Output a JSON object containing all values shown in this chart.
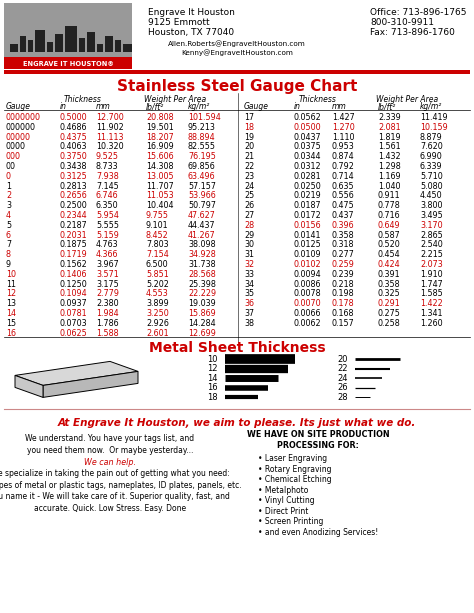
{
  "header": {
    "company": "Engrave It Houston",
    "address1": "9125 Emmott",
    "address2": "Houston, TX 77040",
    "email1": "Allen.Roberts@EngraveItHouston.com",
    "email2": "Kenny@EngraveItHouston.com",
    "office": "Office: 713-896-1765",
    "phone2": "800-310-9911",
    "fax": "Fax: 713-896-1760"
  },
  "chart_title": "Stainless Steel Gauge Chart",
  "left_data": [
    [
      "0000000",
      "0.5000",
      "12.700",
      "20.808",
      "101.594",
      true
    ],
    [
      "000000",
      "0.4686",
      "11.902",
      "19.501",
      "95.213",
      false
    ],
    [
      "00000",
      "0.4375",
      "11.113",
      "18.207",
      "88.894",
      true
    ],
    [
      "0000",
      "0.4063",
      "10.320",
      "16.909",
      "82.555",
      false
    ],
    [
      "000",
      "0.3750",
      "9.525",
      "15.606",
      "76.195",
      true
    ],
    [
      "00",
      "0.3438",
      "8.733",
      "14.308",
      "69.856",
      false
    ],
    [
      "0",
      "0.3125",
      "7.938",
      "13.005",
      "63.496",
      true
    ],
    [
      "1",
      "0.2813",
      "7.145",
      "11.707",
      "57.157",
      false
    ],
    [
      "2",
      "0.2656",
      "6.746",
      "11.053",
      "53.966",
      true
    ],
    [
      "3",
      "0.2500",
      "6.350",
      "10.404",
      "50.797",
      false
    ],
    [
      "4",
      "0.2344",
      "5.954",
      "9.755",
      "47.627",
      true
    ],
    [
      "5",
      "0.2187",
      "5.555",
      "9.101",
      "44.437",
      false
    ],
    [
      "6",
      "0.2031",
      "5.159",
      "8.452",
      "41.267",
      true
    ],
    [
      "7",
      "0.1875",
      "4.763",
      "7.803",
      "38.098",
      false
    ],
    [
      "8",
      "0.1719",
      "4.366",
      "7.154",
      "34.928",
      true
    ],
    [
      "9",
      "0.1562",
      "3.967",
      "6.500",
      "31.738",
      false
    ],
    [
      "10",
      "0.1406",
      "3.571",
      "5.851",
      "28.568",
      true
    ],
    [
      "11",
      "0.1250",
      "3.175",
      "5.202",
      "25.398",
      false
    ],
    [
      "12",
      "0.1094",
      "2.779",
      "4.553",
      "22.229",
      true
    ],
    [
      "13",
      "0.0937",
      "2.380",
      "3.899",
      "19.039",
      false
    ],
    [
      "14",
      "0.0781",
      "1.984",
      "3.250",
      "15.869",
      true
    ],
    [
      "15",
      "0.0703",
      "1.786",
      "2.926",
      "14.284",
      false
    ],
    [
      "16",
      "0.0625",
      "1.588",
      "2.601",
      "12.699",
      true
    ]
  ],
  "right_data": [
    [
      "17",
      "0.0562",
      "1.427",
      "2.339",
      "11.419",
      false
    ],
    [
      "18",
      "0.0500",
      "1.270",
      "2.081",
      "10.159",
      true
    ],
    [
      "19",
      "0.0437",
      "1.110",
      "1.819",
      "8.879",
      false
    ],
    [
      "20",
      "0.0375",
      "0.953",
      "1.561",
      "7.620",
      false
    ],
    [
      "21",
      "0.0344",
      "0.874",
      "1.432",
      "6.990",
      false
    ],
    [
      "22",
      "0.0312",
      "0.792",
      "1.298",
      "6.339",
      false
    ],
    [
      "23",
      "0.0281",
      "0.714",
      "1.169",
      "5.710",
      false
    ],
    [
      "24",
      "0.0250",
      "0.635",
      "1.040",
      "5.080",
      false
    ],
    [
      "25",
      "0.0219",
      "0.556",
      "0.911",
      "4.450",
      false
    ],
    [
      "26",
      "0.0187",
      "0.475",
      "0.778",
      "3.800",
      false
    ],
    [
      "27",
      "0.0172",
      "0.437",
      "0.716",
      "3.495",
      false
    ],
    [
      "28",
      "0.0156",
      "0.396",
      "0.649",
      "3.170",
      true
    ],
    [
      "29",
      "0.0141",
      "0.358",
      "0.587",
      "2.865",
      false
    ],
    [
      "30",
      "0.0125",
      "0.318",
      "0.520",
      "2.540",
      false
    ],
    [
      "31",
      "0.0109",
      "0.277",
      "0.454",
      "2.215",
      false
    ],
    [
      "32",
      "0.0102",
      "0.259",
      "0.424",
      "2.073",
      true
    ],
    [
      "33",
      "0.0094",
      "0.239",
      "0.391",
      "1.910",
      false
    ],
    [
      "34",
      "0.0086",
      "0.218",
      "0.358",
      "1.747",
      false
    ],
    [
      "35",
      "0.0078",
      "0.198",
      "0.325",
      "1.585",
      false
    ],
    [
      "36",
      "0.0070",
      "0.178",
      "0.291",
      "1.422",
      true
    ],
    [
      "37",
      "0.0066",
      "0.168",
      "0.275",
      "1.341",
      false
    ],
    [
      "38",
      "0.0062",
      "0.157",
      "0.258",
      "1.260",
      false
    ]
  ],
  "thickness_section_title": "Metal Sheet Thickness",
  "left_gauges": [
    "10",
    "12",
    "14",
    "16",
    "18"
  ],
  "left_bar_lw": [
    7.0,
    6.0,
    5.0,
    4.0,
    3.0
  ],
  "right_gauges": [
    "20",
    "22",
    "24",
    "26",
    "28"
  ],
  "right_bar_lw": [
    2.0,
    1.5,
    1.2,
    0.9,
    0.7
  ],
  "tagline_normal": "At Engrave It Houston, we aim to please. ",
  "tagline_italic": "Its just what we do.",
  "body_text1": "We understand. You have your tags list, and\nyou need them now.  Or maybe yesterday...",
  "body_text2": "We can help.",
  "body_text3": "We specialize in taking the pain out of getting what you need:\nAll types of metal or plastic tags, nameplates, ID plates, panels, etc.",
  "body_text4": "You name it - We will take care of it. Superior quality, fast, and\naccurate. Quick. Low Stress. Easy. Done",
  "processing_title": "WE HAVE ON SITE PRODUCTION\nPROCESSING FOR:",
  "processing_list": [
    "Laser Engraving",
    "Rotary Engraving",
    "Chemical Etching",
    "Metalphoto",
    "Vinyl Cutting",
    "Direct Print",
    "Screen Printing",
    "and even Anodizing Services!"
  ],
  "red_color": "#cc0000",
  "black_color": "#000000"
}
